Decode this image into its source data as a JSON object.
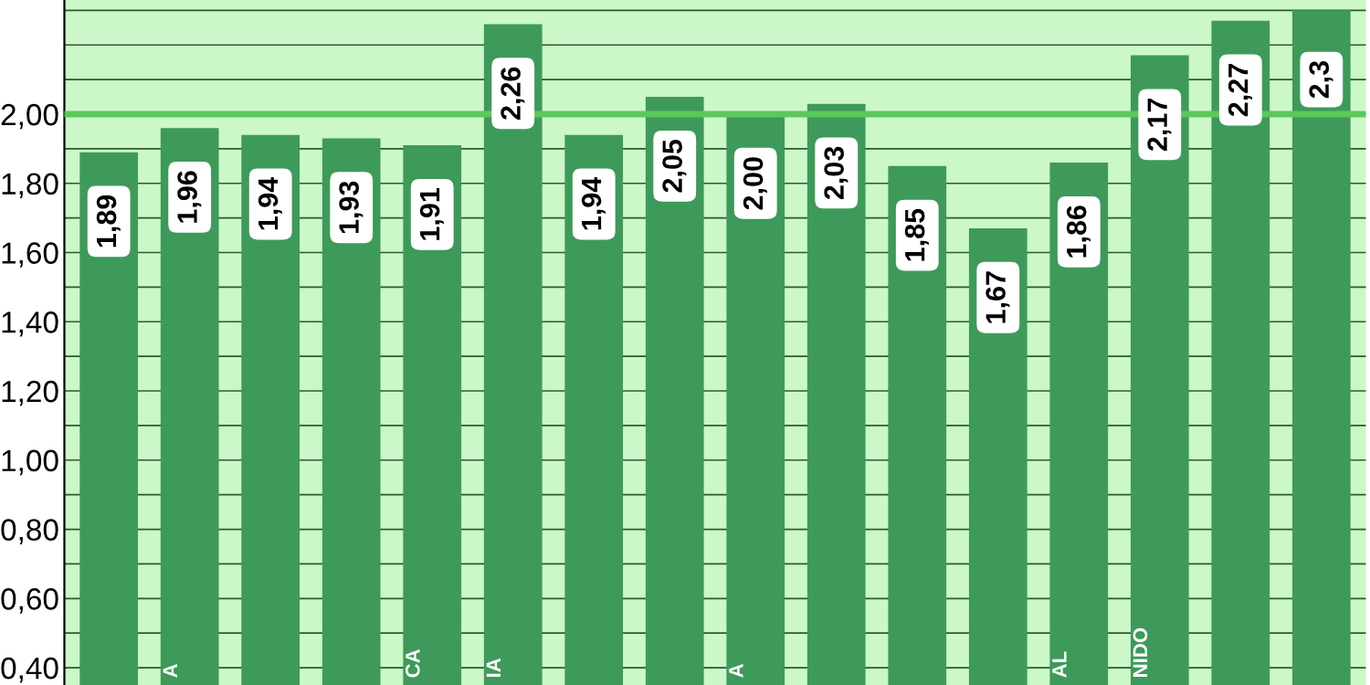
{
  "chart_data": {
    "type": "bar",
    "categories": [
      null,
      "A",
      null,
      null,
      "CA",
      "IA",
      null,
      null,
      "A",
      null,
      null,
      null,
      "AL",
      "NIDO",
      null,
      null
    ],
    "values": [
      1.89,
      1.96,
      1.94,
      1.93,
      1.91,
      2.26,
      1.94,
      2.05,
      2.0,
      2.03,
      1.85,
      1.67,
      1.86,
      2.17,
      2.27,
      2.3
    ],
    "value_labels": [
      "1,89",
      "1,96",
      "1,94",
      "1,93",
      "1,91",
      "2,26",
      "1,94",
      "2,05",
      "2,00",
      "2,03",
      "1,85",
      "1,67",
      "1,86",
      "2,17",
      "2,27",
      "2,3"
    ],
    "color": "#3e9a5a",
    "ylim": [
      0.35,
      2.33
    ],
    "yticks": [
      {
        "value": 0.4,
        "label": "0,40"
      },
      {
        "value": 0.5,
        "label": null
      },
      {
        "value": 0.6,
        "label": "0,60"
      },
      {
        "value": 0.7,
        "label": null
      },
      {
        "value": 0.8,
        "label": "0,80"
      },
      {
        "value": 0.9,
        "label": null
      },
      {
        "value": 1.0,
        "label": "1,00"
      },
      {
        "value": 1.1,
        "label": null
      },
      {
        "value": 1.2,
        "label": "1,20"
      },
      {
        "value": 1.3,
        "label": null
      },
      {
        "value": 1.4,
        "label": "1,40"
      },
      {
        "value": 1.5,
        "label": null
      },
      {
        "value": 1.6,
        "label": "1,60"
      },
      {
        "value": 1.7,
        "label": null
      },
      {
        "value": 1.8,
        "label": "1,80"
      },
      {
        "value": 1.9,
        "label": null
      },
      {
        "value": 2.0,
        "label": "2,00"
      },
      {
        "value": 2.1,
        "label": null
      },
      {
        "value": 2.2,
        "label": null
      },
      {
        "value": 2.3,
        "label": null
      }
    ],
    "grid": "y",
    "ref_lines": [
      {
        "axis": "y",
        "value": 2.0,
        "label": null,
        "color": "#5cc85a"
      }
    ]
  }
}
